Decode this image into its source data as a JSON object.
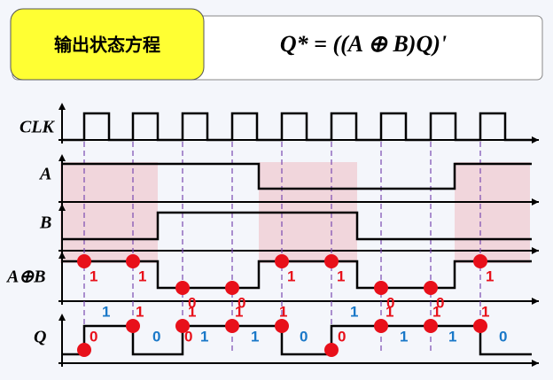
{
  "header": {
    "label": "输出状态方程",
    "equation": "Q* = ((A ⊕ B)Q)'"
  },
  "signals": [
    "CLK",
    "A",
    "B",
    "A⊕B",
    "Q"
  ],
  "xor_labels": [
    "1",
    "1",
    "0",
    "0",
    "1",
    "1",
    "0",
    "0",
    "1"
  ],
  "q_upper_labels": [
    {
      "text": "1",
      "color": "blue"
    },
    {
      "text": "1",
      "color": "red"
    },
    {
      "text": "1",
      "color": "red"
    },
    {
      "text": "1",
      "color": "red"
    },
    {
      "text": "1",
      "color": "red"
    },
    {
      "text": "1",
      "color": "blue"
    },
    {
      "text": "1",
      "color": "red"
    },
    {
      "text": "1",
      "color": "red"
    },
    {
      "text": "1",
      "color": "red"
    }
  ],
  "q_lower_labels": [
    {
      "text": "0",
      "color": "red"
    },
    {
      "text": "0",
      "color": "blue"
    },
    {
      "text": "0",
      "color": "red"
    },
    {
      "text": "1",
      "color": "blue"
    },
    {
      "text": "1",
      "color": "blue"
    },
    {
      "text": "0",
      "color": "blue"
    },
    {
      "text": "0",
      "color": "red"
    },
    {
      "text": "1",
      "color": "blue"
    },
    {
      "text": "1",
      "color": "blue"
    },
    {
      "text": "0",
      "color": "blue"
    }
  ]
}
